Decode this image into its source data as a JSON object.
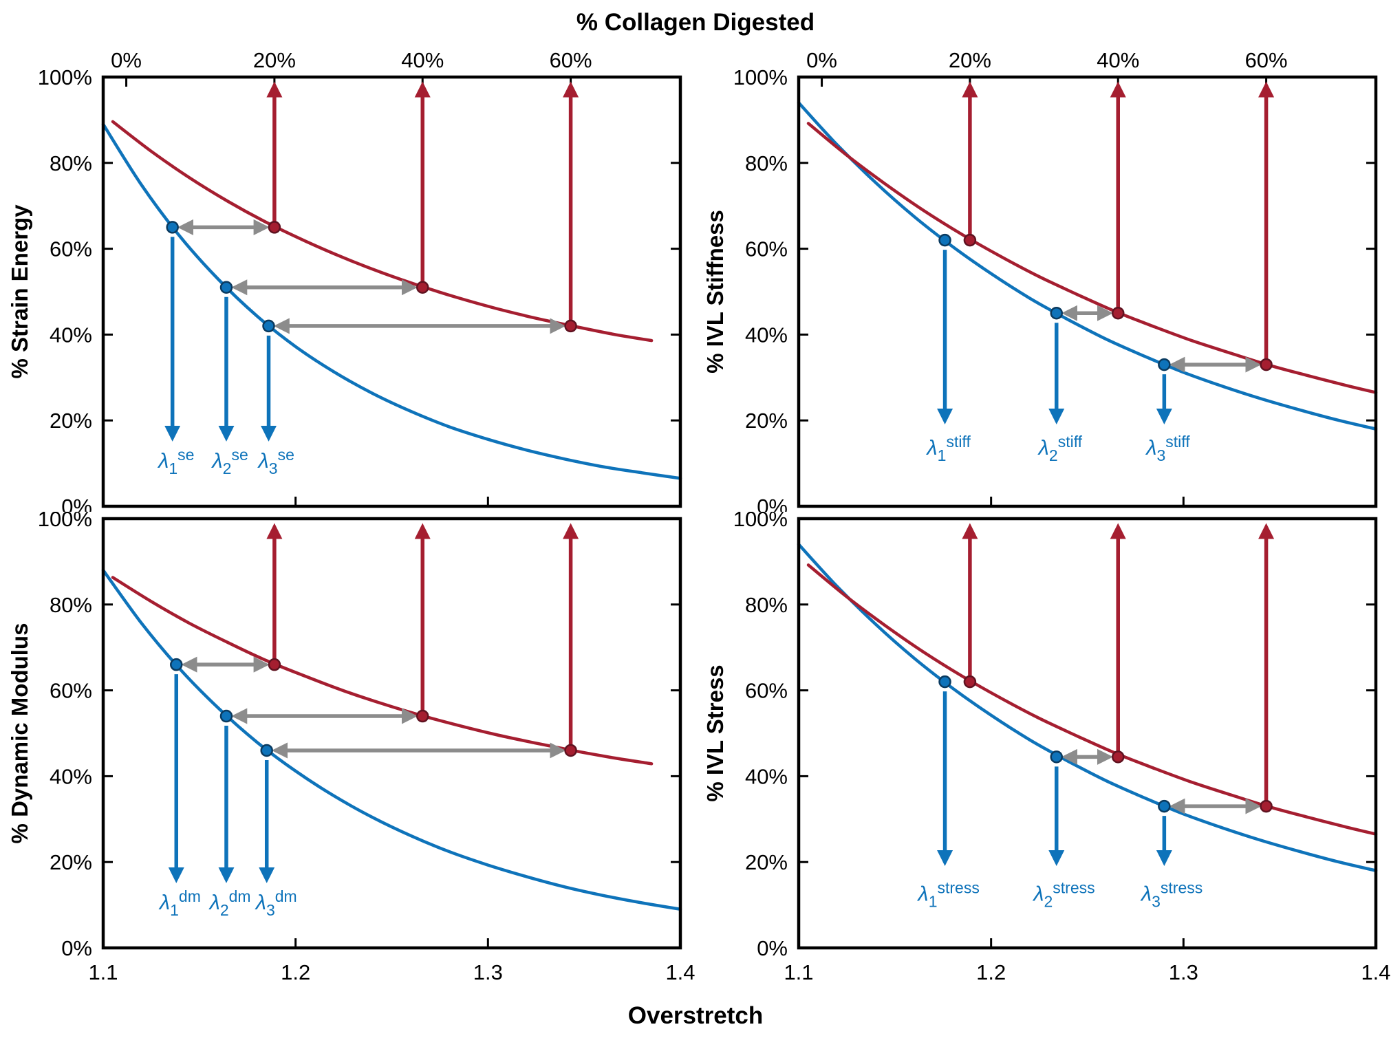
{
  "colors": {
    "blue": "#0e73ba",
    "blue_edge": "#0a3a5f",
    "red": "#a51e30",
    "red_edge": "#5f1220",
    "gray": "#8c8c8c",
    "axis": "#000000"
  },
  "chart_data": {
    "type": "line",
    "layout": "2x2",
    "x_axis": {
      "label": "Overstretch",
      "lim": [
        1.1,
        1.4
      ],
      "ticks": [
        {
          "v": 1.1,
          "label": "1.1"
        },
        {
          "v": 1.2,
          "label": "1.2"
        },
        {
          "v": 1.3,
          "label": "1.3"
        },
        {
          "v": 1.4,
          "label": "1.4"
        }
      ]
    },
    "top_x_axis": {
      "label": "% Collagen Digested",
      "ticks": [
        {
          "v": 1.112,
          "label": "0%"
        },
        {
          "v": 1.189,
          "label": "20%"
        },
        {
          "v": 1.266,
          "label": "40%"
        },
        {
          "v": 1.343,
          "label": "60%"
        }
      ]
    },
    "y_axis": {
      "lim": [
        0,
        100
      ],
      "ticks": [
        {
          "v": 0,
          "label": "0%"
        },
        {
          "v": 20,
          "label": "20%"
        },
        {
          "v": 40,
          "label": "40%"
        },
        {
          "v": 60,
          "label": "60%"
        },
        {
          "v": 80,
          "label": "80%"
        },
        {
          "v": 100,
          "label": "100%"
        }
      ]
    },
    "panels": [
      {
        "id": "strain-energy",
        "row": "top",
        "ylabel": "% Strain Energy",
        "series": [
          {
            "name": "blue-curve",
            "color": "blue",
            "points": [
              [
                1.1,
                89
              ],
              [
                1.12,
                74.8
              ],
              [
                1.14,
                62.8
              ],
              [
                1.16,
                52.8
              ],
              [
                1.18,
                44.3
              ],
              [
                1.2,
                37.2
              ],
              [
                1.22,
                31.3
              ],
              [
                1.24,
                26.3
              ],
              [
                1.26,
                22.1
              ],
              [
                1.28,
                18.5
              ],
              [
                1.3,
                15.6
              ],
              [
                1.32,
                13.1
              ],
              [
                1.34,
                11
              ],
              [
                1.36,
                9.2
              ],
              [
                1.38,
                7.8
              ],
              [
                1.4,
                6.5
              ]
            ]
          },
          {
            "name": "red-curve",
            "color": "red",
            "points": [
              [
                1.105,
                89.6
              ],
              [
                1.125,
                82.7
              ],
              [
                1.145,
                76.5
              ],
              [
                1.165,
                71
              ],
              [
                1.185,
                66.1
              ],
              [
                1.205,
                61.8
              ],
              [
                1.225,
                57.9
              ],
              [
                1.245,
                54.4
              ],
              [
                1.265,
                51.3
              ],
              [
                1.285,
                48.5
              ],
              [
                1.305,
                46
              ],
              [
                1.325,
                43.8
              ],
              [
                1.345,
                41.9
              ],
              [
                1.365,
                40.1
              ],
              [
                1.385,
                38.6
              ]
            ]
          }
        ],
        "blue_markers": [
          [
            1.136,
            65
          ],
          [
            1.164,
            51
          ],
          [
            1.186,
            42
          ]
        ],
        "red_markers": [
          [
            1.189,
            65
          ],
          [
            1.266,
            51
          ],
          [
            1.343,
            42
          ]
        ],
        "down_arrow_tip_y": 16,
        "lambda_labels": [
          {
            "sub": "1",
            "sup": "se",
            "x": 1.138,
            "y": 9
          },
          {
            "sub": "2",
            "sup": "se",
            "x": 1.166,
            "y": 9
          },
          {
            "sub": "3",
            "sup": "se",
            "x": 1.19,
            "y": 9
          }
        ]
      },
      {
        "id": "ivl-stiffness",
        "row": "top",
        "ylabel": "% IVL Stiffness",
        "series": [
          {
            "name": "blue-curve",
            "color": "blue",
            "points": [
              [
                1.1,
                94
              ],
              [
                1.12,
                84.2
              ],
              [
                1.14,
                75.4
              ],
              [
                1.16,
                67.5
              ],
              [
                1.18,
                60.5
              ],
              [
                1.2,
                54.2
              ],
              [
                1.22,
                48.5
              ],
              [
                1.24,
                43.5
              ],
              [
                1.26,
                38.9
              ],
              [
                1.28,
                34.9
              ],
              [
                1.3,
                31.2
              ],
              [
                1.32,
                28
              ],
              [
                1.34,
                25.1
              ],
              [
                1.36,
                22.5
              ],
              [
                1.38,
                20.1
              ],
              [
                1.4,
                18
              ]
            ]
          },
          {
            "name": "red-curve",
            "color": "red",
            "points": [
              [
                1.105,
                89.2
              ],
              [
                1.125,
                81.8
              ],
              [
                1.145,
                75.1
              ],
              [
                1.165,
                68.9
              ],
              [
                1.185,
                63.3
              ],
              [
                1.205,
                58.2
              ],
              [
                1.225,
                53.5
              ],
              [
                1.245,
                49.3
              ],
              [
                1.265,
                45.3
              ],
              [
                1.285,
                41.8
              ],
              [
                1.305,
                38.5
              ],
              [
                1.325,
                35.6
              ],
              [
                1.345,
                32.8
              ],
              [
                1.365,
                30.4
              ],
              [
                1.385,
                28.1
              ],
              [
                1.4,
                26.5
              ]
            ]
          }
        ],
        "blue_markers": [
          [
            1.176,
            62
          ],
          [
            1.234,
            45
          ],
          [
            1.29,
            33
          ]
        ],
        "red_markers": [
          [
            1.189,
            62
          ],
          [
            1.266,
            45
          ],
          [
            1.343,
            33
          ]
        ],
        "down_arrow_tip_y": 20,
        "lambda_labels": [
          {
            "sub": "1",
            "sup": "stiff",
            "x": 1.178,
            "y": 12
          },
          {
            "sub": "2",
            "sup": "stiff",
            "x": 1.236,
            "y": 12
          },
          {
            "sub": "3",
            "sup": "stiff",
            "x": 1.292,
            "y": 12
          }
        ]
      },
      {
        "id": "dynamic-modulus",
        "row": "bottom",
        "ylabel": "% Dynamic Modulus",
        "series": [
          {
            "name": "blue-curve",
            "color": "blue",
            "points": [
              [
                1.1,
                88
              ],
              [
                1.12,
                75.6
              ],
              [
                1.14,
                64.9
              ],
              [
                1.16,
                55.8
              ],
              [
                1.18,
                47.9
              ],
              [
                1.2,
                41.2
              ],
              [
                1.22,
                35.4
              ],
              [
                1.24,
                30.4
              ],
              [
                1.26,
                26.1
              ],
              [
                1.28,
                22.4
              ],
              [
                1.3,
                19.3
              ],
              [
                1.32,
                16.6
              ],
              [
                1.34,
                14.2
              ],
              [
                1.36,
                12.2
              ],
              [
                1.38,
                10.5
              ],
              [
                1.4,
                9
              ]
            ]
          },
          {
            "name": "red-curve",
            "color": "red",
            "points": [
              [
                1.105,
                86.3
              ],
              [
                1.125,
                80.7
              ],
              [
                1.145,
                75.6
              ],
              [
                1.165,
                71.1
              ],
              [
                1.185,
                66.9
              ],
              [
                1.205,
                63.3
              ],
              [
                1.225,
                59.9
              ],
              [
                1.245,
                56.9
              ],
              [
                1.265,
                54.2
              ],
              [
                1.285,
                51.8
              ],
              [
                1.305,
                49.6
              ],
              [
                1.325,
                47.7
              ],
              [
                1.345,
                45.9
              ],
              [
                1.365,
                44.3
              ],
              [
                1.385,
                42.9
              ]
            ]
          }
        ],
        "blue_markers": [
          [
            1.138,
            66
          ],
          [
            1.164,
            54
          ],
          [
            1.185,
            46
          ]
        ],
        "red_markers": [
          [
            1.189,
            66
          ],
          [
            1.266,
            54
          ],
          [
            1.343,
            46
          ]
        ],
        "down_arrow_tip_y": 16,
        "lambda_labels": [
          {
            "sub": "1",
            "sup": "dm",
            "x": 1.14,
            "y": 9
          },
          {
            "sub": "2",
            "sup": "dm",
            "x": 1.166,
            "y": 9
          },
          {
            "sub": "3",
            "sup": "dm",
            "x": 1.19,
            "y": 9
          }
        ]
      },
      {
        "id": "ivl-stress",
        "row": "bottom",
        "ylabel": "% IVL Stress",
        "series": [
          {
            "name": "blue-curve",
            "color": "blue",
            "points": [
              [
                1.1,
                94
              ],
              [
                1.12,
                84.2
              ],
              [
                1.14,
                75.4
              ],
              [
                1.16,
                67.5
              ],
              [
                1.18,
                60.5
              ],
              [
                1.2,
                54.2
              ],
              [
                1.22,
                48.5
              ],
              [
                1.24,
                43.5
              ],
              [
                1.26,
                38.9
              ],
              [
                1.28,
                34.9
              ],
              [
                1.3,
                31.2
              ],
              [
                1.32,
                28
              ],
              [
                1.34,
                25.1
              ],
              [
                1.36,
                22.5
              ],
              [
                1.38,
                20.1
              ],
              [
                1.4,
                18
              ]
            ]
          },
          {
            "name": "red-curve",
            "color": "red",
            "points": [
              [
                1.105,
                89.2
              ],
              [
                1.125,
                81.8
              ],
              [
                1.145,
                75.1
              ],
              [
                1.165,
                68.9
              ],
              [
                1.185,
                63.3
              ],
              [
                1.205,
                58.2
              ],
              [
                1.225,
                53.5
              ],
              [
                1.245,
                49.3
              ],
              [
                1.265,
                45.3
              ],
              [
                1.285,
                41.8
              ],
              [
                1.305,
                38.5
              ],
              [
                1.325,
                35.6
              ],
              [
                1.345,
                32.8
              ],
              [
                1.365,
                30.4
              ],
              [
                1.385,
                28.1
              ],
              [
                1.4,
                26.5
              ]
            ]
          }
        ],
        "blue_markers": [
          [
            1.176,
            62
          ],
          [
            1.234,
            44.5
          ],
          [
            1.29,
            33
          ]
        ],
        "red_markers": [
          [
            1.189,
            62
          ],
          [
            1.266,
            44.5
          ],
          [
            1.343,
            33
          ]
        ],
        "down_arrow_tip_y": 20,
        "lambda_labels": [
          {
            "sub": "1",
            "sup": "stress",
            "x": 1.178,
            "y": 11
          },
          {
            "sub": "2",
            "sup": "stress",
            "x": 1.238,
            "y": 11
          },
          {
            "sub": "3",
            "sup": "stress",
            "x": 1.294,
            "y": 11
          }
        ]
      }
    ]
  }
}
